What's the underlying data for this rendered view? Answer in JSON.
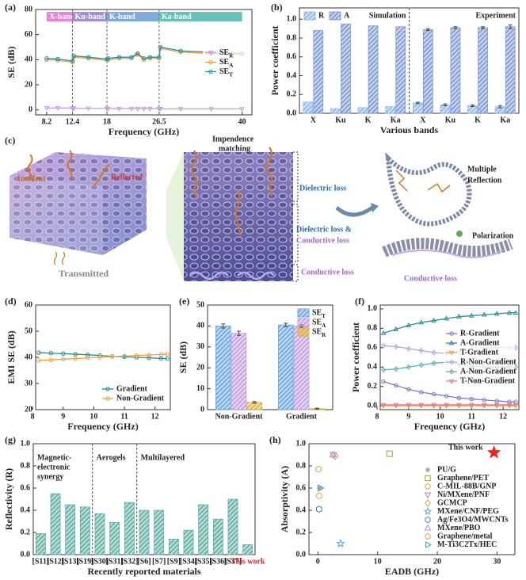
{
  "chart_data": [
    {
      "panel_label": "(a)",
      "type": "line",
      "xlabel": "Frequency (GHz)",
      "ylabel": "SE (dB)",
      "xlim": [
        6.4,
        41.6
      ],
      "xticks": [
        8.2,
        12.4,
        18,
        26.5,
        40
      ],
      "ylim": [
        -4,
        80
      ],
      "yticks": [
        0,
        20,
        40,
        60,
        80
      ],
      "markers": true,
      "legend": "center right",
      "bands": [
        {
          "label": "X-band",
          "from": 8.2,
          "to": 12.4,
          "color": "#e070d0"
        },
        {
          "label": "Ku-band",
          "from": 12.4,
          "to": 18,
          "color": "#8e7cc8"
        },
        {
          "label": "K-band",
          "from": 18,
          "to": 26.5,
          "color": "#6a9ad8"
        },
        {
          "label": "Ka-band",
          "from": 26.5,
          "to": 40,
          "color": "#4ab8a8"
        }
      ],
      "x": [
        8.2,
        10,
        12.4,
        12.6,
        15,
        18,
        18.2,
        20,
        22,
        23,
        24,
        25,
        26.5,
        26.7,
        30,
        35,
        40
      ],
      "series": [
        {
          "name": "SE",
          "subscript": "R",
          "color": "#c39ee0",
          "marker": "triangle-down",
          "values": [
            1.5,
            1.5,
            1.5,
            1.2,
            1.2,
            1.2,
            1,
            1,
            1,
            1,
            1,
            1,
            1,
            0.8,
            0.8,
            0.8,
            0.8
          ]
        },
        {
          "name": "SE",
          "subscript": "A",
          "color": "#f0a040",
          "marker": "circle",
          "values": [
            40,
            39.5,
            38,
            42,
            41,
            39.5,
            40,
            41,
            41,
            44,
            40,
            41,
            41,
            49,
            46,
            45,
            44
          ]
        },
        {
          "name": "SE",
          "subscript": "T",
          "color": "#2a8a9a",
          "marker": "circle",
          "values": [
            41,
            40.5,
            39,
            43,
            42,
            40.5,
            41,
            42,
            42,
            45,
            41,
            42,
            42,
            50,
            47,
            46,
            45
          ]
        }
      ]
    },
    {
      "panel_label": "(b)",
      "type": "bar",
      "xlabel": "Various bands",
      "ylabel": "Power coefficient",
      "categories": [
        "X",
        "Ku",
        "K",
        "Ka",
        "X",
        "Ku",
        "K",
        "Ka"
      ],
      "ylim": [
        0,
        1.12
      ],
      "yticks": [
        {
          "value": 0,
          "label": "0.0"
        },
        0.2,
        0.4,
        0.6,
        0.8,
        {
          "value": 1,
          "label": "1.0"
        }
      ],
      "legend": "upper left",
      "legend_layout": "horizontal",
      "group_breaks": [
        4
      ],
      "annotations": [
        "Simulation",
        "Experiment"
      ],
      "series": [
        {
          "name": "R",
          "color": "#8fb8e6",
          "values": [
            0.12,
            0.05,
            0.06,
            0.07,
            0.11,
            0.09,
            0.08,
            0.07
          ],
          "errors": [
            null,
            null,
            null,
            null,
            0.008,
            0.01,
            0.008,
            0.012
          ]
        },
        {
          "name": "A",
          "color": "#7f9ad6",
          "values": [
            0.88,
            0.95,
            0.93,
            0.92,
            0.89,
            0.91,
            0.91,
            0.92
          ],
          "errors": [
            null,
            null,
            null,
            null,
            0.01,
            0.01,
            0.01,
            0.02
          ]
        }
      ]
    },
    {
      "panel_label": "(d)",
      "type": "line",
      "xlabel": "Frequency (GHz)",
      "ylabel": "EMI SE (dB)",
      "xlim": [
        8.1,
        12.5
      ],
      "xticks": [
        8,
        9,
        10,
        11,
        12
      ],
      "ylim": [
        20,
        60
      ],
      "yticks": [
        20,
        30,
        40,
        50,
        60
      ],
      "markers": true,
      "legend": "lower right",
      "x": [
        8.2,
        8.6,
        9.0,
        9.4,
        9.8,
        10.2,
        10.6,
        11.0,
        11.4,
        11.8,
        12.2,
        12.4
      ],
      "series": [
        {
          "name": "Gradient",
          "color": "#2a8a9a",
          "marker": "circle",
          "values": [
            41.8,
            41.6,
            41.4,
            41.2,
            41.0,
            40.7,
            40.4,
            40.2,
            40.0,
            39.8,
            39.6,
            39.5
          ]
        },
        {
          "name": "Non-Gradient",
          "color": "#f0a040",
          "marker": "circle",
          "values": [
            38.8,
            39.0,
            39.3,
            39.5,
            39.8,
            40.0,
            40.3,
            40.5,
            40.7,
            40.9,
            41.1,
            41.2
          ]
        }
      ]
    },
    {
      "panel_label": "(e)",
      "type": "bar",
      "ylabel": "SE (dB)",
      "categories": [
        "Non-Gradient",
        "Gradient"
      ],
      "ylim": [
        0,
        50
      ],
      "yticks": [
        0,
        10,
        20,
        30,
        40,
        50
      ],
      "legend": "upper right",
      "series": [
        {
          "name": "SE",
          "subscript": "T",
          "color": "#6aa8e0",
          "values": [
            40,
            40.5
          ],
          "errors": [
            1,
            0.8
          ]
        },
        {
          "name": "SE",
          "subscript": "A",
          "color": "#c39ee0",
          "values": [
            36.5,
            40
          ],
          "errors": [
            1,
            0.6
          ]
        },
        {
          "name": "SE",
          "subscript": "R",
          "color": "#e0b040",
          "values": [
            3.5,
            0.5
          ],
          "errors": [
            0.4,
            0.2
          ]
        }
      ]
    },
    {
      "panel_label": "(f)",
      "type": "line",
      "xlabel": "Frequency (GHz)",
      "ylabel": "Power coefficient",
      "xlim": [
        8.1,
        12.5
      ],
      "xticks": [
        8,
        9,
        10,
        11,
        12
      ],
      "ylim": [
        -0.04,
        1.04
      ],
      "yticks": [
        {
          "value": 0,
          "label": "0.0"
        },
        0.2,
        0.4,
        0.6,
        0.8,
        {
          "value": 1,
          "label": "1.0"
        }
      ],
      "markers": true,
      "legend": "center right",
      "x": [
        8.2,
        8.6,
        9.0,
        9.4,
        9.8,
        10.2,
        10.6,
        11.0,
        11.4,
        11.8,
        12.2,
        12.4
      ],
      "series": [
        {
          "name": "R-Gradient",
          "color": "#7a7ad0",
          "marker": "circle",
          "values": [
            0.25,
            0.21,
            0.17,
            0.14,
            0.12,
            0.1,
            0.08,
            0.07,
            0.06,
            0.05,
            0.04,
            0.04
          ]
        },
        {
          "name": "A-Gradient",
          "color": "#2a8a9a",
          "marker": "triangle",
          "values": [
            0.75,
            0.79,
            0.83,
            0.86,
            0.88,
            0.9,
            0.92,
            0.93,
            0.94,
            0.95,
            0.96,
            0.96
          ]
        },
        {
          "name": "T-Gradient",
          "color": "#f0a040",
          "marker": "triangle-down",
          "values": [
            0,
            0,
            0,
            0,
            0,
            0,
            0,
            0,
            0,
            0,
            0,
            0
          ]
        },
        {
          "name": "R-Non-Gradient",
          "color": "#b9a0e0",
          "marker": "diamond",
          "values": [
            0.62,
            0.61,
            0.59,
            0.57,
            0.55,
            0.54,
            0.56,
            0.58,
            0.59,
            0.6,
            0.6,
            0.6
          ]
        },
        {
          "name": "A-Non-Gradient",
          "color": "#5ab0b0",
          "marker": "diamond",
          "values": [
            0.37,
            0.38,
            0.4,
            0.42,
            0.44,
            0.45,
            0.43,
            0.41,
            0.4,
            0.4,
            0.4,
            0.4
          ]
        },
        {
          "name": "T-Non-Gradient",
          "color": "#e07aa0",
          "marker": "triangle-down",
          "values": [
            0.01,
            0.01,
            0.01,
            0.01,
            0.01,
            0.01,
            0.01,
            0.01,
            0.01,
            0.01,
            0.01,
            0.01
          ]
        }
      ]
    },
    {
      "panel_label": "(g)",
      "type": "bar",
      "xlabel": "Recently reported materials",
      "ylabel": "Reflectivity (R)",
      "categories": [
        "[S11]",
        "[S12]",
        "[S13]",
        "[S19]",
        "[S30]",
        "[S31]",
        "[S32]",
        "[S6]",
        "[S7]",
        "[S9]",
        "[S34]",
        "[S35]",
        "[S36]",
        "[S37]",
        "This work"
      ],
      "values": [
        0.19,
        0.55,
        0.45,
        0.43,
        0.37,
        0.29,
        0.47,
        0.4,
        0.4,
        0.14,
        0.22,
        0.45,
        0.32,
        0.5,
        0.09
      ],
      "color": "#5fb0a4",
      "ylim": [
        0,
        1
      ],
      "yticks": [
        {
          "value": 0,
          "label": "0.0"
        },
        0.2,
        0.4,
        0.6,
        0.8,
        {
          "value": 1,
          "label": "1.0"
        }
      ],
      "group_breaks": [
        4,
        7
      ],
      "highlight_index": 14,
      "highlight_color": "#e8251f",
      "groups": [
        {
          "lines": [
            "Magnetic-",
            "electronic",
            "synergy"
          ]
        },
        {
          "lines": [
            "Aerogels"
          ]
        },
        {
          "lines": [
            "Multilayered"
          ]
        }
      ]
    },
    {
      "panel_label": "(h)",
      "type": "scatter",
      "xlabel": "EADB (GHz)",
      "ylabel": "Absorptivity (A)",
      "xlim": [
        -1.5,
        33
      ],
      "xticks": [
        0,
        10,
        20,
        30
      ],
      "ylim": [
        0,
        1
      ],
      "yticks": [
        {
          "value": 0,
          "label": "0.0"
        },
        0.2,
        0.4,
        0.6,
        0.8,
        {
          "value": 1,
          "label": "1.0"
        }
      ],
      "legend": "lower right",
      "series": [
        {
          "name": "PU/G",
          "color": "#9a9aa8",
          "marker": "asterisk",
          "x": [
            0.3
          ],
          "values": [
            0.6
          ]
        },
        {
          "name": "Graphene/PET",
          "color": "#a0a030",
          "marker": "square",
          "x": [
            12
          ],
          "values": [
            0.91
          ]
        },
        {
          "name": "C-MIL-88B/GNP",
          "color": "#f0a040",
          "marker": "circle",
          "x": [
            0.2
          ],
          "values": [
            0.53
          ]
        },
        {
          "name": "Ni/MXene/PNF",
          "color": "#9a8ad8",
          "marker": "triangle-down",
          "x": [
            2.6
          ],
          "values": [
            0.9
          ]
        },
        {
          "name": "GCMCP",
          "color": "#e0a030",
          "marker": "diamond",
          "x": [
            2.9
          ],
          "values": [
            0.89
          ]
        },
        {
          "name": "MXene/CNF/PEG",
          "color": "#4aa8e0",
          "marker": "star",
          "x": [
            3.8
          ],
          "values": [
            0.1
          ]
        },
        {
          "name": "Ag/Fe3O4/MWCNTs",
          "color": "#3a8ab0",
          "marker": "hexagon",
          "x": [
            0.2
          ],
          "values": [
            0.41
          ]
        },
        {
          "name": "MXene/PBO",
          "color": "#c080d0",
          "marker": "triangle",
          "x": [
            2.5
          ],
          "values": [
            0.9
          ]
        },
        {
          "name": "Graphene/metal",
          "color": "#f0a040",
          "marker": "hexagon",
          "x": [
            0.1
          ],
          "values": [
            0.77
          ]
        },
        {
          "name": "M-Ti3C2Tx/HEC",
          "color": "#3aa0d0",
          "marker": "triangle-right",
          "x": [
            0.4
          ],
          "values": [
            0.6
          ]
        },
        {
          "name": "This work",
          "color": "#e8251f",
          "marker": "star",
          "filled": true,
          "in_legend": false,
          "x": [
            29.5
          ],
          "values": [
            0.92
          ]
        }
      ]
    }
  ],
  "diagram": {
    "panel_label": "(c)",
    "incident": "Incident",
    "reflected": "Reflected",
    "transmitted": "Transmitted",
    "impedance_matching": [
      "Impendence",
      "matching"
    ],
    "dielectric_loss": "Dielectric loss",
    "mixed_loss": [
      "Dielectric loss &",
      "Conductive loss"
    ],
    "conductive_loss": "Conductive loss",
    "multiple_reflection": [
      "Multiple",
      "Reflection"
    ],
    "polarization": "Polarization",
    "network_conductive_loss": "Conductive loss"
  }
}
